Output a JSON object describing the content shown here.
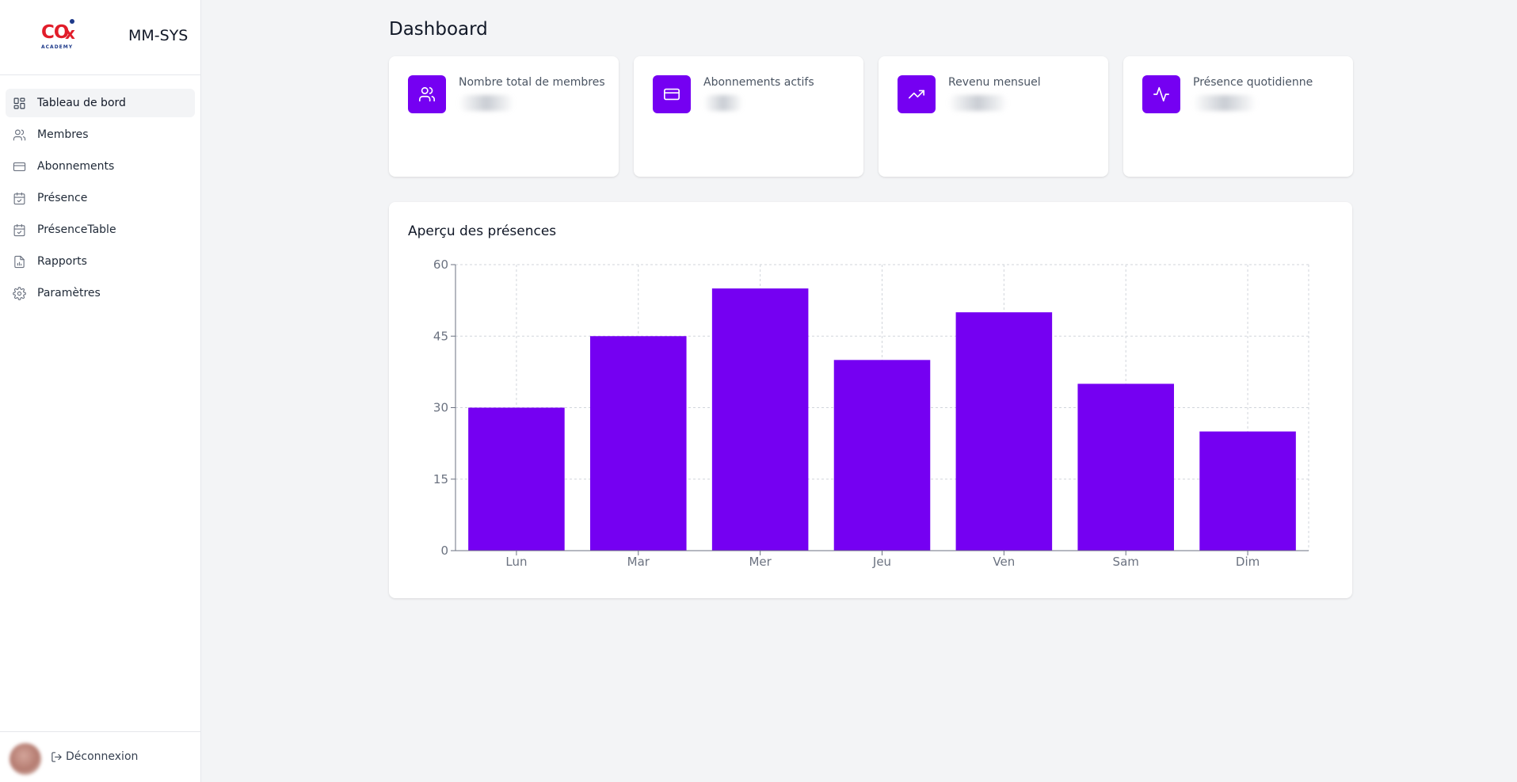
{
  "sidebar": {
    "logo_text": "CO",
    "logo_mark": "x",
    "logo_subtitle": "ACADEMY",
    "app_name": "MM-SYS",
    "items": [
      {
        "label": "Tableau de bord",
        "icon": "layout-dashboard-icon",
        "active": true
      },
      {
        "label": "Membres",
        "icon": "users-icon",
        "active": false
      },
      {
        "label": "Abonnements",
        "icon": "credit-card-icon",
        "active": false
      },
      {
        "label": "Présence",
        "icon": "calendar-check-icon",
        "active": false
      },
      {
        "label": "PrésenceTable",
        "icon": "calendar-check-icon",
        "active": false
      },
      {
        "label": "Rapports",
        "icon": "file-chart-icon",
        "active": false
      },
      {
        "label": "Paramètres",
        "icon": "gear-icon",
        "active": false
      }
    ],
    "logout_label": "Déconnexion"
  },
  "main": {
    "title": "Dashboard",
    "stats": [
      {
        "label": "Nombre total de membres",
        "icon": "users-icon"
      },
      {
        "label": "Abonnements actifs",
        "icon": "credit-card-icon"
      },
      {
        "label": "Revenu mensuel",
        "icon": "trending-up-icon"
      },
      {
        "label": "Présence quotidienne",
        "icon": "activity-icon"
      }
    ],
    "chart_title": "Aperçu des présences"
  },
  "colors": {
    "accent": "#7500f2",
    "background": "#f3f4f6"
  },
  "chart_data": {
    "type": "bar",
    "title": "Aperçu des présences",
    "categories": [
      "Lun",
      "Mar",
      "Mer",
      "Jeu",
      "Ven",
      "Sam",
      "Dim"
    ],
    "values": [
      30,
      45,
      55,
      40,
      50,
      35,
      25
    ],
    "ylim": [
      0,
      60
    ],
    "yticks": [
      0,
      15,
      30,
      45,
      60
    ],
    "grid": true,
    "color": "#7500f2"
  }
}
